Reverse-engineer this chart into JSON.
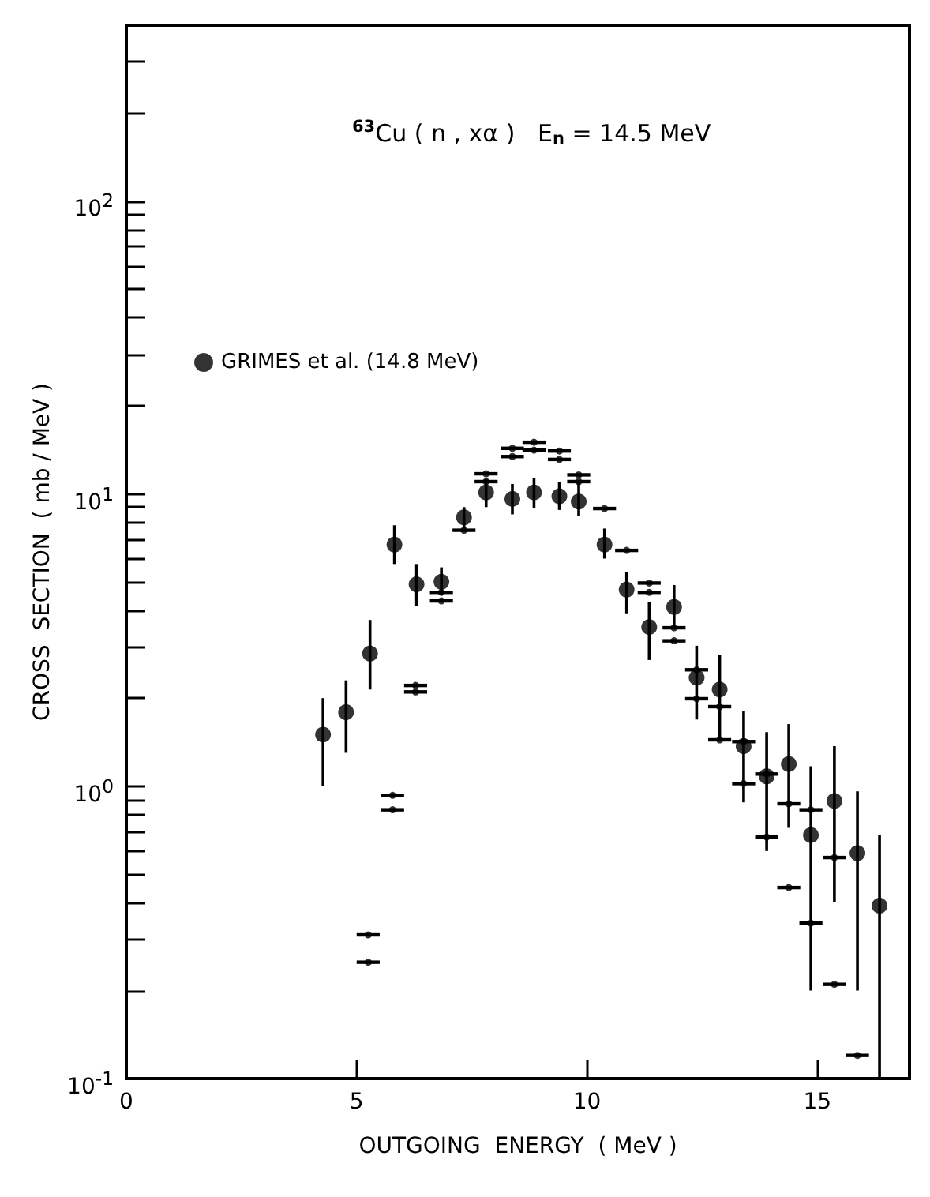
{
  "chart_data": {
    "type": "scatter",
    "title": "$^{63}$Cu ( n , xα )   E$_{n}$ = 14.5 MeV",
    "xlabel": "OUTGOING  ENERGY  ( MeV )",
    "ylabel": "CROSS  SECTION  ( mb / MeV )",
    "log": "y",
    "grid": false,
    "legend": "top left",
    "xlim": [
      0,
      17
    ],
    "xticks": [
      0,
      5,
      10,
      15
    ],
    "ylim": [
      0.1,
      400
    ],
    "yticks": [
      {
        "value": 0.1,
        "label": "10$^{-1}$"
      },
      {
        "value": 0.2,
        "label": null
      },
      {
        "value": 0.3,
        "label": null
      },
      {
        "value": 0.4,
        "label": null
      },
      {
        "value": 0.5,
        "label": null
      },
      {
        "value": 0.6,
        "label": null
      },
      {
        "value": 0.7,
        "label": null
      },
      {
        "value": 0.8,
        "label": null
      },
      {
        "value": 0.9,
        "label": null
      },
      {
        "value": 1,
        "label": "10$^{0}$"
      },
      {
        "value": 2,
        "label": null
      },
      {
        "value": 3,
        "label": null
      },
      {
        "value": 4,
        "label": null
      },
      {
        "value": 5,
        "label": null
      },
      {
        "value": 6,
        "label": null
      },
      {
        "value": 7,
        "label": null
      },
      {
        "value": 8,
        "label": null
      },
      {
        "value": 9,
        "label": null
      },
      {
        "value": 10,
        "label": "10$^{1}$"
      },
      {
        "value": 20,
        "label": null
      },
      {
        "value": 30,
        "label": null
      },
      {
        "value": 40,
        "label": null
      },
      {
        "value": 50,
        "label": null
      },
      {
        "value": 60,
        "label": null
      },
      {
        "value": 70,
        "label": null
      },
      {
        "value": 80,
        "label": null
      },
      {
        "value": 90,
        "label": null
      },
      {
        "value": 100,
        "label": "10$^{2}$"
      },
      {
        "value": 200,
        "label": null
      },
      {
        "value": 300,
        "label": null
      }
    ],
    "series": [
      {
        "name": "GRIMES et al. (14.8 MeV)",
        "color": "#000000",
        "marker": "circle",
        "x": [
          4.27,
          4.77,
          5.29,
          5.82,
          6.3,
          6.84,
          7.33,
          7.81,
          8.38,
          8.85,
          9.4,
          9.82,
          10.38,
          10.86,
          11.35,
          11.89,
          12.38,
          12.88,
          13.4,
          13.9,
          14.38,
          14.86,
          15.37,
          15.87,
          16.35
        ],
        "values": [
          1.5,
          1.79,
          2.84,
          6.7,
          4.9,
          5.0,
          8.3,
          10.1,
          9.6,
          10.1,
          9.8,
          9.4,
          6.7,
          4.7,
          3.5,
          4.1,
          2.35,
          2.14,
          1.37,
          1.08,
          1.19,
          0.68,
          0.89,
          0.59,
          0.39
        ],
        "errors": [
          [
            1.0,
            2.0
          ],
          [
            1.3,
            2.3
          ],
          [
            2.14,
            3.7
          ],
          [
            5.75,
            7.8
          ],
          [
            4.14,
            5.75
          ],
          [
            4.5,
            5.6
          ],
          [
            7.6,
            9.0
          ],
          [
            9.0,
            11.2
          ],
          [
            8.5,
            10.8
          ],
          [
            8.9,
            11.3
          ],
          [
            8.8,
            11.0
          ],
          [
            8.4,
            10.9
          ],
          [
            6.0,
            7.6
          ],
          [
            3.9,
            5.4
          ],
          [
            2.7,
            4.26
          ],
          [
            3.5,
            4.87
          ],
          [
            1.69,
            3.02
          ],
          [
            1.43,
            2.81
          ],
          [
            0.88,
            1.81
          ],
          [
            0.6,
            1.53
          ],
          [
            0.72,
            1.63
          ],
          [
            0.2,
            1.17
          ],
          [
            0.4,
            1.37
          ],
          [
            0.2,
            0.96
          ],
          [
            0.1,
            0.68
          ]
        ]
      },
      {
        "color": "#000000",
        "marker": "circle",
        "x": [
          5.25,
          5.25,
          5.78,
          5.78,
          6.28,
          6.28,
          6.84,
          6.84,
          7.33,
          7.81,
          7.81,
          8.38,
          8.38,
          8.85,
          8.85,
          9.4,
          9.4,
          9.82,
          9.82,
          10.38,
          10.86,
          11.35,
          11.35,
          11.89,
          11.89,
          12.38,
          12.38,
          12.88,
          12.88,
          13.4,
          13.4,
          13.9,
          13.9,
          14.38,
          14.38,
          14.86,
          14.86,
          15.37,
          15.37,
          15.87
        ],
        "values": [
          0.31,
          0.25,
          0.93,
          0.83,
          2.21,
          2.1,
          4.6,
          4.3,
          7.5,
          11.7,
          11.0,
          14.3,
          13.4,
          15.0,
          14.1,
          14.0,
          13.1,
          11.6,
          11.0,
          8.9,
          6.4,
          4.95,
          4.6,
          3.48,
          3.14,
          2.5,
          1.99,
          1.87,
          1.44,
          1.42,
          1.02,
          1.1,
          0.67,
          0.87,
          0.45,
          0.83,
          0.34,
          0.57,
          0.21,
          0.12
        ],
        "xerrors": [
          0.25,
          0.25,
          0.25,
          0.25,
          0.25,
          0.25,
          0.25,
          0.25,
          0.25,
          0.25,
          0.25,
          0.25,
          0.25,
          0.25,
          0.25,
          0.25,
          0.25,
          0.25,
          0.25,
          0.25,
          0.25,
          0.25,
          0.25,
          0.25,
          0.25,
          0.25,
          0.25,
          0.25,
          0.25,
          0.25,
          0.25,
          0.25,
          0.25,
          0.25,
          0.25,
          0.25,
          0.25,
          0.25,
          0.25,
          0.25
        ]
      }
    ]
  }
}
